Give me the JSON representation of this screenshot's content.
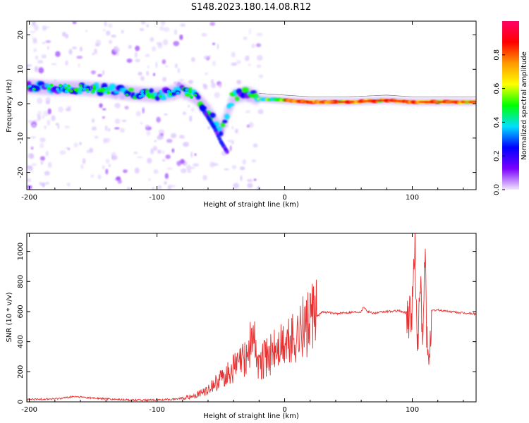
{
  "title": "S148.2023.180.14.08.R12",
  "colors": {
    "snr_line": "#e83030",
    "ridge": "#3a0a80"
  },
  "chart_data": [
    {
      "type": "heatmap",
      "xlabel": "Height of straight line (km)",
      "ylabel": "Frequency (Hz)",
      "xlim": [
        -202,
        150
      ],
      "ylim": [
        -25,
        24
      ],
      "xticks": [
        "-200",
        "-100",
        "0",
        "100"
      ],
      "yticks": [
        "20",
        "10",
        "0",
        "-10",
        "-20"
      ],
      "colorbar": {
        "label": "Normalized spectral amplitude",
        "ticks": [
          "0.0",
          "0.2",
          "0.4",
          "0.6",
          "0.8"
        ],
        "range": [
          0,
          1
        ],
        "colormap": [
          "#f2e6ff",
          "#7a00ff",
          "#0000ff",
          "#00e0ff",
          "#00ff00",
          "#ffff00",
          "#ff9900",
          "#ff0000",
          "#ff0066"
        ]
      },
      "ridge": {
        "x": [
          -200,
          -180,
          -160,
          -140,
          -120,
          -100,
          -90,
          -80,
          -70,
          -60,
          -50,
          -40,
          -30,
          -20,
          0,
          20,
          50,
          80,
          100,
          120,
          150
        ],
        "y": [
          5,
          4.5,
          4.5,
          4,
          3,
          2.5,
          3,
          4,
          2,
          -2,
          -8,
          2,
          3,
          1.5,
          1,
          0.5,
          0.5,
          1,
          0.5,
          0.5,
          0.5
        ]
      },
      "descent": {
        "x": [
          -65,
          -60,
          -55,
          -50,
          -45
        ],
        "y": [
          -1,
          -4,
          -7,
          -11,
          -14
        ]
      }
    },
    {
      "type": "line",
      "xlabel": "Height of straight line (km)",
      "ylabel": "SNR (10 * v/v)",
      "xlim": [
        -202,
        150
      ],
      "ylim": [
        0,
        1120
      ],
      "xticks": [
        "-200",
        "-100",
        "0",
        "100"
      ],
      "yticks": [
        "0",
        "200",
        "400",
        "600",
        "800",
        "1000"
      ],
      "series": [
        {
          "x": [
            -202,
            -180,
            -165,
            -150,
            -130,
            -110,
            -90,
            -80,
            -70,
            -60,
            -50,
            -40,
            -30,
            -25,
            -20,
            -10,
            0,
            10,
            20,
            30,
            40,
            50,
            60,
            62,
            65,
            70,
            80,
            90,
            95,
            100,
            102,
            104,
            106,
            108,
            110,
            112,
            115,
            120,
            130,
            140,
            150
          ],
          "y": [
            15,
            20,
            35,
            25,
            15,
            10,
            15,
            25,
            40,
            80,
            150,
            230,
            300,
            450,
            250,
            330,
            380,
            450,
            530,
            600,
            585,
            595,
            600,
            635,
            600,
            590,
            600,
            605,
            590,
            600,
            1100,
            250,
            900,
            300,
            1000,
            200,
            605,
            610,
            600,
            590,
            585
          ]
        }
      ]
    }
  ]
}
